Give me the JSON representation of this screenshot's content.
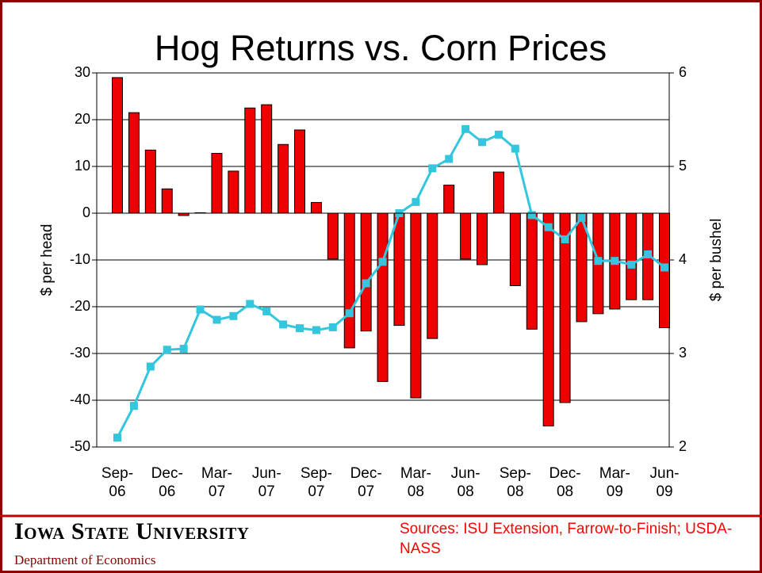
{
  "chart_data": {
    "type": "bar_line",
    "title": "Hog Returns vs. Corn Prices",
    "ylabel": "$ per head",
    "y2label": "$ per bushel",
    "categories": [
      "Sep-06",
      null,
      null,
      "Dec-06",
      null,
      null,
      "Mar-07",
      null,
      null,
      "Jun-07",
      null,
      null,
      "Sep-07",
      null,
      null,
      "Dec-07",
      null,
      null,
      "Mar-08",
      null,
      null,
      "Jun-08",
      null,
      null,
      "Sep-08",
      null,
      null,
      "Dec-08",
      null,
      null,
      "Mar-09",
      null,
      null,
      "Jun-09"
    ],
    "series": [
      {
        "type": "bar",
        "color": "#ee0000",
        "values": [
          29,
          21.5,
          13.5,
          5.2,
          -0.5,
          0.1,
          12.8,
          9,
          22.5,
          23.2,
          14.7,
          17.8,
          2.3,
          -9.8,
          -28.8,
          -25.2,
          -36,
          -24,
          -39.5,
          -26.8,
          6,
          -9.8,
          -11,
          8.8,
          -15.5,
          -24.8,
          -45.5,
          -40.5,
          -23.2,
          -21.5,
          -20.5,
          -18.5,
          -18.5,
          -24.5
        ]
      },
      {
        "type": "line",
        "axis": "y2",
        "color": "#33c6dd",
        "values": [
          2.1,
          2.44,
          2.86,
          3.04,
          3.05,
          3.47,
          3.36,
          3.4,
          3.53,
          3.45,
          3.31,
          3.27,
          3.25,
          3.28,
          3.43,
          3.75,
          3.98,
          4.5,
          4.62,
          4.98,
          5.08,
          5.4,
          5.26,
          5.34,
          5.19,
          4.48,
          4.35,
          4.22,
          4.45,
          3.99,
          3.99,
          3.95,
          4.06,
          3.92
        ]
      }
    ],
    "ylim": [
      -50,
      30
    ],
    "yticks": [
      -50,
      -40,
      -30,
      -20,
      -10,
      0,
      10,
      20,
      30
    ],
    "y2lim": [
      2,
      6
    ],
    "y2ticks": [
      2,
      3,
      4,
      5,
      6
    ],
    "grid": true
  },
  "footer": {
    "university": "Iowa State University",
    "department": "Department of Economics",
    "sources": "Sources: ISU Extension, Farrow-to-Finish; USDA-NASS"
  }
}
